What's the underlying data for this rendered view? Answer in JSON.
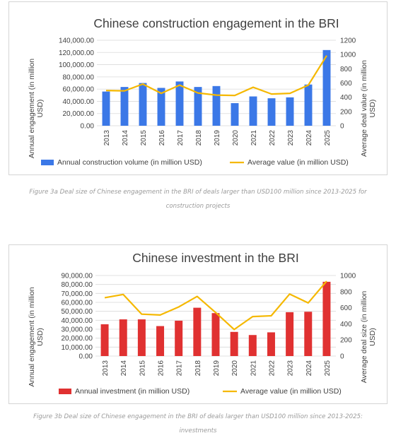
{
  "chart_data": [
    {
      "type": "bar",
      "title": "Chinese construction engagement in the BRI",
      "ylabel": "Annual engagement (in million USD)",
      "y2label": "Average deal value (in million USD)",
      "categories": [
        "2013",
        "2014",
        "2015",
        "2016",
        "2017",
        "2018",
        "2019",
        "2020",
        "2021",
        "2022",
        "2023",
        "2024",
        "2025"
      ],
      "ylim": [
        0,
        140000
      ],
      "yticks": [
        "0.00",
        "20,000.00",
        "40,000.00",
        "60,000.00",
        "80,000.00",
        "100,000.00",
        "120,000.00",
        "140,000.00"
      ],
      "y2lim": [
        0,
        1200
      ],
      "y2ticks": [
        "0",
        "200",
        "400",
        "600",
        "800",
        "1000",
        "1200"
      ],
      "series": [
        {
          "name": "Annual construction volume (in million USD)",
          "kind": "bar",
          "axis": "left",
          "color": "#3B78E7",
          "values": [
            56000,
            63500,
            70000,
            62000,
            72500,
            63500,
            65000,
            37000,
            48000,
            45000,
            46500,
            67500,
            124000
          ]
        },
        {
          "name": "Average value (in million USD)",
          "kind": "line",
          "axis": "right",
          "color": "#F5B800",
          "values": [
            495,
            490,
            585,
            455,
            570,
            460,
            430,
            425,
            540,
            445,
            455,
            570,
            985
          ]
        }
      ],
      "legend_position": "bottom",
      "grid": true
    },
    {
      "type": "bar",
      "title": "Chinese investment in the BRI",
      "ylabel": "Annual engagement (in million USD)",
      "y2label": "Average deal size (in million USD)",
      "categories": [
        "2013",
        "2014",
        "2015",
        "2016",
        "2017",
        "2018",
        "2019",
        "2020",
        "2021",
        "2022",
        "2023",
        "2024",
        "2025"
      ],
      "ylim": [
        0,
        90000
      ],
      "yticks": [
        "0.00",
        "10,000.00",
        "20,000.00",
        "30,000.00",
        "40,000.00",
        "50,000.00",
        "60,000.00",
        "70,000.00",
        "80,000.00",
        "90,000.00"
      ],
      "y2lim": [
        0,
        1000
      ],
      "y2ticks": [
        "0",
        "200",
        "400",
        "600",
        "800",
        "1000"
      ],
      "series": [
        {
          "name": "Annual investment (in million USD)",
          "kind": "bar",
          "axis": "left",
          "color": "#E03131",
          "values": [
            35500,
            41000,
            41000,
            33500,
            39500,
            54000,
            48000,
            27000,
            23500,
            26500,
            49000,
            49500,
            83000
          ]
        },
        {
          "name": "Average value (in million USD)",
          "kind": "line",
          "axis": "right",
          "color": "#F5B800",
          "values": [
            725,
            765,
            520,
            510,
            610,
            740,
            540,
            330,
            490,
            500,
            770,
            660,
            930
          ]
        }
      ],
      "legend_position": "bottom",
      "grid": true
    }
  ],
  "captions": {
    "fig3a": "Figure 3a Deal size of Chinese engagement in the BRI of deals larger than USD100 million since 2013-2025 for construction projects",
    "fig3b": "Figure 3b Deal size of Chinese engagement in the BRI of deals larger than USD100 million since 2013-2025: investments"
  }
}
